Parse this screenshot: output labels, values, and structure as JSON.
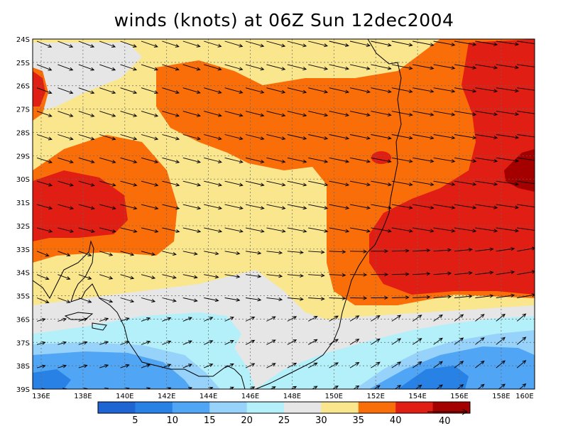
{
  "title": "winds (knots) at 06Z Sun 12dec2004",
  "map": {
    "lat_labels": [
      "24S",
      "25S",
      "26S",
      "27S",
      "28S",
      "29S",
      "30S",
      "31S",
      "32S",
      "33S",
      "34S",
      "35S",
      "36S",
      "37S",
      "38S",
      "39S"
    ],
    "lon_labels": [
      "136E",
      "138E",
      "140E",
      "142E",
      "144E",
      "146E",
      "148E",
      "150E",
      "152E",
      "154E",
      "156E",
      "158E",
      "160E"
    ]
  },
  "colorbar": {
    "labels": [
      "5",
      "10",
      "15",
      "20",
      "25",
      "30",
      "35",
      "40"
    ],
    "colors": [
      "#1e64d2",
      "#2882e6",
      "#50a5f5",
      "#96d2fa",
      "#b4f0fa",
      "#e6e6e6",
      "#fae68c",
      "#fa6e0a",
      "#e11e14",
      "#a50000"
    ]
  },
  "reference_vector": {
    "label": "40"
  }
}
